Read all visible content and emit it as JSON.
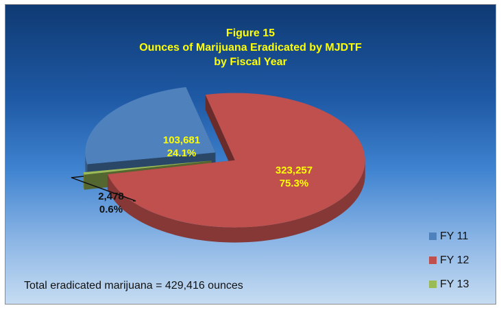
{
  "chart_data": {
    "type": "pie",
    "title": "Figure 15",
    "subtitle_lines": [
      "Ounces of Marijuana Eradicated by MJDTF",
      "by Fiscal Year"
    ],
    "slices": [
      {
        "name": "FY 11",
        "value": 103681,
        "value_label": "103,681",
        "percent_label": "24.1%",
        "color": "#4f81bd"
      },
      {
        "name": "FY 12",
        "value": 323257,
        "value_label": "323,257",
        "percent_label": "75.3%",
        "color": "#c0504d"
      },
      {
        "name": "FY 13",
        "value": 2478,
        "value_label": "2,478",
        "percent_label": "0.6%",
        "color": "#9bbb59"
      }
    ],
    "legend": [
      "FY 11",
      "FY 12",
      "FY 13"
    ],
    "legend_placement": "bottom-right",
    "annotation": "Total eradicated marijuana = 429,416 ounces",
    "style": "3d-exploded-pie"
  }
}
